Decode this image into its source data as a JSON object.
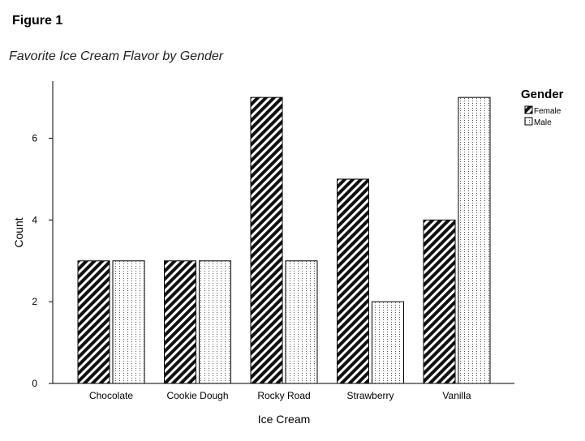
{
  "figure": {
    "label": "Figure 1",
    "title": "Favorite Ice Cream Flavor by Gender"
  },
  "chart_data": {
    "type": "bar",
    "categories": [
      "Chocolate",
      "Cookie Dough",
      "Rocky Road",
      "Strawberry",
      "Vanilla"
    ],
    "series": [
      {
        "name": "Female",
        "values": [
          3,
          3,
          7,
          5,
          4
        ],
        "pattern": "diagonal-stripes"
      },
      {
        "name": "Male",
        "values": [
          3,
          3,
          3,
          2,
          7
        ],
        "pattern": "dotted"
      }
    ],
    "xlabel": "Ice Cream",
    "ylabel": "Count",
    "ylim": [
      0,
      7.4
    ],
    "yticks": [
      "0",
      "2",
      "4",
      "6"
    ],
    "legend_title": "Gender",
    "legend_position": "top-right",
    "grid": false
  }
}
